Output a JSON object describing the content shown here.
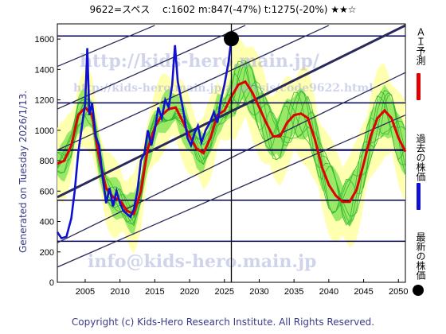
{
  "header": {
    "title": "9622=スペス　 c:1602  m:847(-47%)  t:1275(-20%)  ★★☆"
  },
  "side": {
    "generated": "Generated on Tuesday 2026/1/13."
  },
  "footer": {
    "copyright": "Copyright (c) Kids-Hero Research Institute. All Rights Reserved."
  },
  "legend": [
    {
      "label": "ＡＩ予測",
      "color": "#e00000"
    },
    {
      "label": "過去の株価",
      "color": "#1010d0"
    },
    {
      "label": "最新の株価",
      "color": "#000000"
    }
  ],
  "watermarks": [
    "http://kids-hero.main.jp/",
    "http://kids-hero.main.jp/analysis/code9622.html",
    "info@kids-hero.main.jp"
  ],
  "colors": {
    "ai": "#e00000",
    "past": "#1010d0",
    "band_yellow": "#ffffb0",
    "band_green": "#99e866",
    "scenario": "#33b833",
    "grid": "#000050",
    "trend": "#2a2a5a"
  },
  "chart_data": {
    "type": "line",
    "x_range": [
      2001,
      2051
    ],
    "y_range": [
      0,
      1700
    ],
    "xticks": [
      2005,
      2010,
      2015,
      2020,
      2025,
      2030,
      2035,
      2040,
      2045,
      2050
    ],
    "yticks": [
      0,
      200,
      400,
      600,
      800,
      1000,
      1200,
      1400,
      1600
    ],
    "series": [
      {
        "name": "過去の株価",
        "points": [
          [
            2001.0,
            330
          ],
          [
            2001.6,
            290
          ],
          [
            2002.3,
            300
          ],
          [
            2003.0,
            420
          ],
          [
            2003.5,
            600
          ],
          [
            2004.0,
            850
          ],
          [
            2004.6,
            1050
          ],
          [
            2005.0,
            1180
          ],
          [
            2005.3,
            1540
          ],
          [
            2005.6,
            1100
          ],
          [
            2006.0,
            1180
          ],
          [
            2006.5,
            960
          ],
          [
            2007.0,
            900
          ],
          [
            2007.5,
            700
          ],
          [
            2008.0,
            520
          ],
          [
            2008.5,
            620
          ],
          [
            2009.0,
            500
          ],
          [
            2009.5,
            600
          ],
          [
            2010.0,
            520
          ],
          [
            2010.5,
            470
          ],
          [
            2011.0,
            450
          ],
          [
            2011.5,
            430
          ],
          [
            2012.0,
            480
          ],
          [
            2012.5,
            600
          ],
          [
            2013.0,
            800
          ],
          [
            2013.5,
            850
          ],
          [
            2014.0,
            1000
          ],
          [
            2014.5,
            900
          ],
          [
            2015.0,
            1000
          ],
          [
            2015.5,
            1150
          ],
          [
            2016.0,
            1080
          ],
          [
            2016.5,
            1200
          ],
          [
            2017.0,
            1150
          ],
          [
            2017.5,
            1300
          ],
          [
            2017.9,
            1560
          ],
          [
            2018.3,
            1320
          ],
          [
            2018.8,
            1200
          ],
          [
            2019.2,
            1100
          ],
          [
            2019.7,
            950
          ],
          [
            2020.2,
            900
          ],
          [
            2020.7,
            980
          ],
          [
            2021.2,
            1030
          ],
          [
            2021.7,
            920
          ],
          [
            2022.3,
            1000
          ],
          [
            2022.9,
            1050
          ],
          [
            2023.5,
            1120
          ],
          [
            2024.0,
            1050
          ],
          [
            2024.5,
            1200
          ],
          [
            2025.0,
            1300
          ],
          [
            2025.6,
            1450
          ],
          [
            2026.0,
            1602
          ]
        ]
      },
      {
        "name": "ＡＩ予測",
        "points": [
          [
            2001.0,
            780
          ],
          [
            2002.0,
            800
          ],
          [
            2003.0,
            900
          ],
          [
            2004.0,
            1100
          ],
          [
            2005.0,
            1150
          ],
          [
            2006.0,
            1100
          ],
          [
            2007.0,
            820
          ],
          [
            2008.0,
            620
          ],
          [
            2009.0,
            560
          ],
          [
            2010.0,
            540
          ],
          [
            2011.0,
            470
          ],
          [
            2012.0,
            450
          ],
          [
            2013.0,
            600
          ],
          [
            2014.0,
            880
          ],
          [
            2015.0,
            1020
          ],
          [
            2016.0,
            1100
          ],
          [
            2017.0,
            1140
          ],
          [
            2018.0,
            1150
          ],
          [
            2019.0,
            1060
          ],
          [
            2020.0,
            960
          ],
          [
            2021.0,
            880
          ],
          [
            2022.0,
            850
          ],
          [
            2023.0,
            950
          ],
          [
            2024.0,
            1100
          ],
          [
            2025.0,
            1130
          ],
          [
            2026.0,
            1220
          ],
          [
            2027.0,
            1300
          ],
          [
            2028.0,
            1320
          ],
          [
            2029.0,
            1250
          ],
          [
            2030.0,
            1150
          ],
          [
            2031.0,
            1050
          ],
          [
            2032.0,
            960
          ],
          [
            2033.0,
            960
          ],
          [
            2034.0,
            1050
          ],
          [
            2035.0,
            1100
          ],
          [
            2036.0,
            1110
          ],
          [
            2037.0,
            1080
          ],
          [
            2038.0,
            940
          ],
          [
            2039.0,
            760
          ],
          [
            2040.0,
            640
          ],
          [
            2041.0,
            570
          ],
          [
            2042.0,
            530
          ],
          [
            2043.0,
            530
          ],
          [
            2044.0,
            610
          ],
          [
            2045.0,
            780
          ],
          [
            2046.0,
            960
          ],
          [
            2047.0,
            1080
          ],
          [
            2048.0,
            1130
          ],
          [
            2049.0,
            1080
          ],
          [
            2050.0,
            950
          ],
          [
            2051.0,
            860
          ]
        ]
      }
    ],
    "latest": {
      "x": 2026.0,
      "y": 1602
    },
    "hlines": [
      870,
      1180,
      540,
      270,
      1620
    ],
    "trendlines": [
      {
        "from": [
          2001,
          560
        ],
        "to": [
          2051,
          1690
        ]
      },
      {
        "from": [
          2001,
          870
        ],
        "to": [
          2040,
          1690
        ]
      },
      {
        "from": [
          2001,
          1140
        ],
        "to": [
          2028,
          1690
        ]
      },
      {
        "from": [
          2001,
          1420
        ],
        "to": [
          2015,
          1690
        ]
      },
      {
        "from": [
          2001,
          260
        ],
        "to": [
          2051,
          1380
        ]
      },
      {
        "from": [
          2001,
          100
        ],
        "to": [
          2051,
          1100
        ]
      }
    ]
  }
}
